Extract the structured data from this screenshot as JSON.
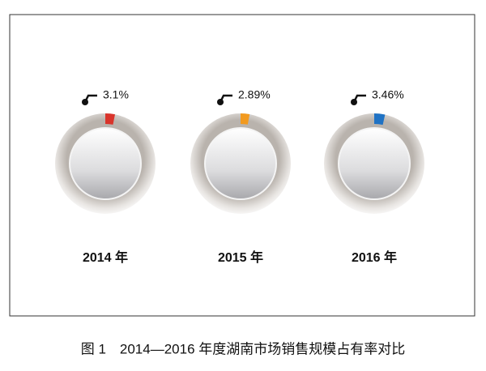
{
  "chart_data": {
    "type": "gauge",
    "title": "图 1　2014—2016 年度湖南市场销售规模占有率对比",
    "categories": [
      "2014 年",
      "2015 年",
      "2016 年"
    ],
    "values": [
      3.1,
      2.89,
      3.46
    ],
    "value_labels": [
      "3.1%",
      "2.89%",
      "3.46%"
    ],
    "colors": [
      "#d9342b",
      "#f29a1f",
      "#1f72c4"
    ]
  }
}
